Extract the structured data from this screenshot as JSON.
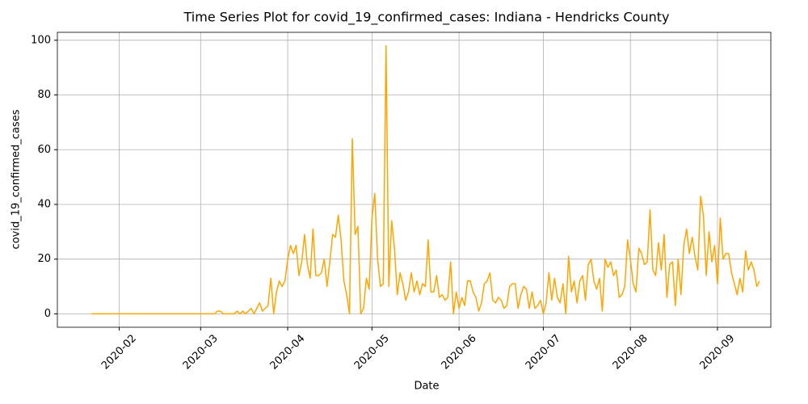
{
  "chart_data": {
    "type": "line",
    "title": "Time Series Plot for covid_19_confirmed_cases: Indiana - Hendricks County",
    "x_label": "Date",
    "y_label": "covid_19_confirmed_cases",
    "color": "#ffa500",
    "grid": true,
    "xlim": [
      "2020-01-10",
      "2020-09-20"
    ],
    "xticks": [
      {
        "value": "2020-02-01",
        "label": "2020-02"
      },
      {
        "value": "2020-03-01",
        "label": "2020-03"
      },
      {
        "value": "2020-04-01",
        "label": "2020-04"
      },
      {
        "value": "2020-05-01",
        "label": "2020-05"
      },
      {
        "value": "2020-06-01",
        "label": "2020-06"
      },
      {
        "value": "2020-07-01",
        "label": "2020-07"
      },
      {
        "value": "2020-08-01",
        "label": "2020-08"
      },
      {
        "value": "2020-09-01",
        "label": "2020-09"
      }
    ],
    "ylim": [
      -4.9,
      102.9
    ],
    "yticks": [
      0,
      20,
      40,
      60,
      80,
      100
    ],
    "x": [
      "2020-01-22",
      "2020-01-23",
      "2020-01-24",
      "2020-01-25",
      "2020-01-26",
      "2020-01-27",
      "2020-01-28",
      "2020-01-29",
      "2020-01-30",
      "2020-01-31",
      "2020-02-01",
      "2020-02-02",
      "2020-02-03",
      "2020-02-04",
      "2020-02-05",
      "2020-02-06",
      "2020-02-07",
      "2020-02-08",
      "2020-02-09",
      "2020-02-10",
      "2020-02-11",
      "2020-02-12",
      "2020-02-13",
      "2020-02-14",
      "2020-02-15",
      "2020-02-16",
      "2020-02-17",
      "2020-02-18",
      "2020-02-19",
      "2020-02-20",
      "2020-02-21",
      "2020-02-22",
      "2020-02-23",
      "2020-02-24",
      "2020-02-25",
      "2020-02-26",
      "2020-02-27",
      "2020-02-28",
      "2020-02-29",
      "2020-03-01",
      "2020-03-02",
      "2020-03-03",
      "2020-03-04",
      "2020-03-05",
      "2020-03-06",
      "2020-03-07",
      "2020-03-08",
      "2020-03-09",
      "2020-03-10",
      "2020-03-11",
      "2020-03-12",
      "2020-03-13",
      "2020-03-14",
      "2020-03-15",
      "2020-03-16",
      "2020-03-17",
      "2020-03-18",
      "2020-03-19",
      "2020-03-20",
      "2020-03-21",
      "2020-03-22",
      "2020-03-23",
      "2020-03-24",
      "2020-03-25",
      "2020-03-26",
      "2020-03-27",
      "2020-03-28",
      "2020-03-29",
      "2020-03-30",
      "2020-03-31",
      "2020-04-01",
      "2020-04-02",
      "2020-04-03",
      "2020-04-04",
      "2020-04-05",
      "2020-04-06",
      "2020-04-07",
      "2020-04-08",
      "2020-04-09",
      "2020-04-10",
      "2020-04-11",
      "2020-04-12",
      "2020-04-13",
      "2020-04-14",
      "2020-04-15",
      "2020-04-16",
      "2020-04-17",
      "2020-04-18",
      "2020-04-19",
      "2020-04-20",
      "2020-04-21",
      "2020-04-22",
      "2020-04-23",
      "2020-04-24",
      "2020-04-25",
      "2020-04-26",
      "2020-04-27",
      "2020-04-28",
      "2020-04-29",
      "2020-04-30",
      "2020-05-01",
      "2020-05-02",
      "2020-05-03",
      "2020-05-04",
      "2020-05-05",
      "2020-05-06",
      "2020-05-07",
      "2020-05-08",
      "2020-05-09",
      "2020-05-10",
      "2020-05-11",
      "2020-05-12",
      "2020-05-13",
      "2020-05-14",
      "2020-05-15",
      "2020-05-16",
      "2020-05-17",
      "2020-05-18",
      "2020-05-19",
      "2020-05-20",
      "2020-05-21",
      "2020-05-22",
      "2020-05-23",
      "2020-05-24",
      "2020-05-25",
      "2020-05-26",
      "2020-05-27",
      "2020-05-28",
      "2020-05-29",
      "2020-05-30",
      "2020-05-31",
      "2020-06-01",
      "2020-06-02",
      "2020-06-03",
      "2020-06-04",
      "2020-06-05",
      "2020-06-06",
      "2020-06-07",
      "2020-06-08",
      "2020-06-09",
      "2020-06-10",
      "2020-06-11",
      "2020-06-12",
      "2020-06-13",
      "2020-06-14",
      "2020-06-15",
      "2020-06-16",
      "2020-06-17",
      "2020-06-18",
      "2020-06-19",
      "2020-06-20",
      "2020-06-21",
      "2020-06-22",
      "2020-06-23",
      "2020-06-24",
      "2020-06-25",
      "2020-06-26",
      "2020-06-27",
      "2020-06-28",
      "2020-06-29",
      "2020-06-30",
      "2020-07-01",
      "2020-07-02",
      "2020-07-03",
      "2020-07-04",
      "2020-07-05",
      "2020-07-06",
      "2020-07-07",
      "2020-07-08",
      "2020-07-09",
      "2020-07-10",
      "2020-07-11",
      "2020-07-12",
      "2020-07-13",
      "2020-07-14",
      "2020-07-15",
      "2020-07-16",
      "2020-07-17",
      "2020-07-18",
      "2020-07-19",
      "2020-07-20",
      "2020-07-21",
      "2020-07-22",
      "2020-07-23",
      "2020-07-24",
      "2020-07-25",
      "2020-07-26",
      "2020-07-27",
      "2020-07-28",
      "2020-07-29",
      "2020-07-30",
      "2020-07-31",
      "2020-08-01",
      "2020-08-02",
      "2020-08-03",
      "2020-08-04",
      "2020-08-05",
      "2020-08-06",
      "2020-08-07",
      "2020-08-08",
      "2020-08-09",
      "2020-08-10",
      "2020-08-11",
      "2020-08-12",
      "2020-08-13",
      "2020-08-14",
      "2020-08-15",
      "2020-08-16",
      "2020-08-17",
      "2020-08-18",
      "2020-08-19",
      "2020-08-20",
      "2020-08-21",
      "2020-08-22",
      "2020-08-23",
      "2020-08-24",
      "2020-08-25",
      "2020-08-26",
      "2020-08-27",
      "2020-08-28",
      "2020-08-29",
      "2020-08-30",
      "2020-08-31",
      "2020-09-01",
      "2020-09-02",
      "2020-09-03",
      "2020-09-04",
      "2020-09-05",
      "2020-09-06",
      "2020-09-07",
      "2020-09-08",
      "2020-09-09",
      "2020-09-10",
      "2020-09-11",
      "2020-09-12",
      "2020-09-13",
      "2020-09-14",
      "2020-09-15",
      "2020-09-16"
    ],
    "values": [
      0,
      0,
      0,
      0,
      0,
      0,
      0,
      0,
      0,
      0,
      0,
      0,
      0,
      0,
      0,
      0,
      0,
      0,
      0,
      0,
      0,
      0,
      0,
      0,
      0,
      0,
      0,
      0,
      0,
      0,
      0,
      0,
      0,
      0,
      0,
      0,
      0,
      0,
      0,
      0,
      0,
      0,
      0,
      0,
      0,
      1,
      1,
      0,
      0,
      0,
      0,
      0,
      1,
      0,
      1,
      0,
      1,
      2,
      0,
      2,
      4,
      1,
      2,
      3,
      13,
      0,
      8,
      12,
      10,
      12,
      20,
      25,
      22,
      25,
      14,
      19,
      29,
      18,
      13,
      31,
      14,
      14,
      15,
      20,
      10,
      19,
      29,
      28,
      36,
      27,
      12,
      7,
      0,
      64,
      29,
      32,
      0,
      2,
      13,
      9,
      35,
      44,
      20,
      10,
      11,
      98,
      10,
      34,
      24,
      7,
      15,
      11,
      5,
      8,
      15,
      8,
      12,
      7,
      11,
      10,
      27,
      8,
      8,
      14,
      6,
      7,
      5,
      6,
      19,
      0,
      8,
      2,
      6,
      3,
      12,
      12,
      8,
      6,
      1,
      4,
      11,
      12,
      15,
      5,
      4,
      6,
      5,
      2,
      3,
      10,
      11,
      11,
      2,
      7,
      10,
      9,
      2,
      8,
      2,
      3,
      5,
      0,
      4,
      15,
      5,
      13,
      6,
      4,
      11,
      0,
      21,
      8,
      12,
      4,
      12,
      14,
      5,
      18,
      20,
      12,
      9,
      13,
      1,
      20,
      17,
      19,
      14,
      16,
      6,
      7,
      10,
      27,
      20,
      11,
      8,
      24,
      22,
      18,
      19,
      38,
      16,
      14,
      26,
      16,
      29,
      6,
      18,
      19,
      3,
      20,
      7,
      25,
      31,
      22,
      28,
      21,
      16,
      43,
      36,
      14,
      30,
      19,
      25,
      11,
      35,
      20,
      22,
      22,
      15,
      11,
      7,
      13,
      8,
      23,
      16,
      19,
      16,
      10,
      12
    ]
  }
}
